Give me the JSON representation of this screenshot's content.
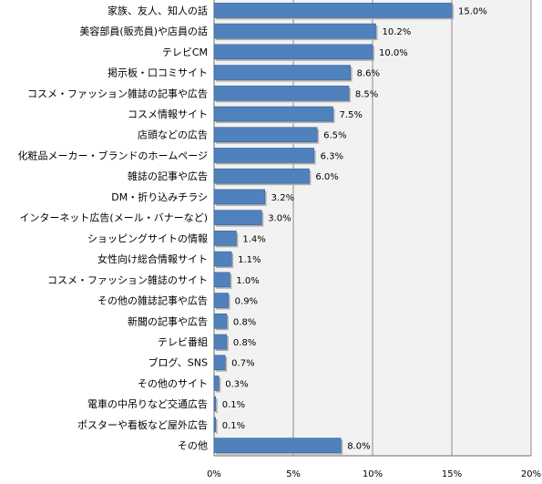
{
  "chart_data": {
    "type": "bar",
    "orientation": "horizontal",
    "categories": [
      "家族、友人、知人の話",
      "美容部員(販売員)や店員の話",
      "テレビCM",
      "掲示板・口コミサイト",
      "コスメ・ファッション雑誌の記事や広告",
      "コスメ情報サイト",
      "店頭などの広告",
      "化粧品メーカー・ブランドのホームページ",
      "雑誌の記事や広告",
      "DM・折り込みチラシ",
      "インターネット広告(メール・バナーなど)",
      "ショッピングサイトの情報",
      "女性向け総合情報サイト",
      "コスメ・ファッション雑誌のサイト",
      "その他の雑誌記事や広告",
      "新聞の記事や広告",
      "テレビ番組",
      "ブログ、SNS",
      "その他のサイト",
      "電車の中吊りなど交通広告",
      "ポスターや看板など屋外広告",
      "その他"
    ],
    "values": [
      15.0,
      10.2,
      10.0,
      8.6,
      8.5,
      7.5,
      6.5,
      6.3,
      6.0,
      3.2,
      3.0,
      1.4,
      1.1,
      1.0,
      0.9,
      0.8,
      0.8,
      0.7,
      0.3,
      0.1,
      0.1,
      8.0
    ],
    "value_labels": [
      "15.0%",
      "10.2%",
      "10.0%",
      "8.6%",
      "8.5%",
      "7.5%",
      "6.5%",
      "6.3%",
      "6.0%",
      "3.2%",
      "3.0%",
      "1.4%",
      "1.1%",
      "1.0%",
      "0.9%",
      "0.8%",
      "0.8%",
      "0.7%",
      "0.3%",
      "0.1%",
      "0.1%",
      "8.0%"
    ],
    "x_ticks": [
      "0%",
      "5%",
      "10%",
      "15%",
      "20%"
    ],
    "xlim": [
      0,
      20
    ],
    "grid": true,
    "colors": {
      "bar": "#4f81bd",
      "bar_edge": "#3a6496",
      "shadow": "#b0b0b0",
      "plot_bg": "#f2f2f2",
      "grid": "#8c8c8c",
      "text": "#000000"
    }
  }
}
